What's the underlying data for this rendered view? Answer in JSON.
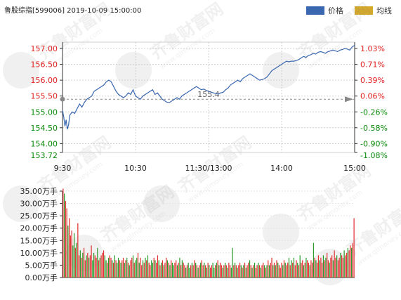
{
  "header": {
    "title": "鲁股综指[599006] 2019-10-09 15:00:00"
  },
  "legend": [
    {
      "label": "价格",
      "color": "#3a67b0"
    },
    {
      "label": "均线",
      "color": "#d5aa2c"
    }
  ],
  "watermark": {
    "text": "齐鲁财富网",
    "url": "www.qlmoney.com"
  },
  "colors": {
    "price_line": "#3a67b0",
    "up_text": "#e02020",
    "down_text": "#0a8a0a",
    "up_bar": "#e03030",
    "down_bar": "#2a9a2a",
    "grid": "#d0d0d0",
    "axis": "#333333",
    "marker": "#888888"
  },
  "chart_data": [
    {
      "type": "line",
      "title": "鲁股综指[599006] 2019-10-09 15:00:00",
      "y_left_ticks": [
        "157.00",
        "156.50",
        "156.00",
        "155.50",
        "155.00",
        "154.50",
        "154.00",
        "153.72"
      ],
      "y_left_tick_values": [
        157.0,
        156.5,
        156.0,
        155.5,
        155.0,
        154.5,
        154.0,
        153.72
      ],
      "y_right_ticks": [
        "1.03%",
        "0.71%",
        "0.39%",
        "0.06%",
        "-0.26%",
        "-0.58%",
        "-0.90%",
        "-1.08%"
      ],
      "y_right_tick_values": [
        157.0,
        156.5,
        156.0,
        155.5,
        155.0,
        154.5,
        154.0,
        153.72
      ],
      "x_tick_labels": [
        "9:30",
        "10:30",
        "11:30/13:00",
        "14:00",
        "15:00"
      ],
      "x_tick_positions": [
        0,
        60,
        120,
        180,
        240
      ],
      "ylim": [
        153.72,
        157.2
      ],
      "xlim": [
        0,
        240
      ],
      "reference_label": "155.4",
      "reference_value": 155.4,
      "series": [
        {
          "color": "#3a67b0",
          "x": [
            0,
            1,
            2,
            3,
            4,
            5,
            6,
            8,
            10,
            12,
            14,
            16,
            18,
            20,
            22,
            24,
            26,
            28,
            30,
            32,
            34,
            36,
            38,
            40,
            42,
            44,
            46,
            48,
            50,
            52,
            54,
            56,
            58,
            60,
            62,
            64,
            66,
            68,
            70,
            72,
            74,
            76,
            78,
            80,
            82,
            84,
            86,
            88,
            90,
            92,
            94,
            96,
            98,
            100,
            102,
            104,
            106,
            108,
            110,
            112,
            114,
            116,
            118,
            120,
            122,
            124,
            126,
            128,
            130,
            132,
            134,
            136,
            138,
            140,
            142,
            144,
            146,
            148,
            150,
            152,
            154,
            156,
            158,
            160,
            162,
            164,
            166,
            168,
            170,
            172,
            174,
            176,
            178,
            180,
            182,
            184,
            186,
            188,
            190,
            192,
            194,
            196,
            198,
            200,
            202,
            204,
            206,
            208,
            210,
            212,
            214,
            216,
            218,
            220,
            222,
            224,
            226,
            228,
            230,
            232,
            234,
            236,
            238,
            240
          ],
          "values": [
            155.05,
            154.85,
            154.55,
            154.75,
            154.45,
            154.6,
            154.9,
            155.0,
            154.95,
            155.1,
            155.25,
            155.15,
            155.3,
            155.4,
            155.45,
            155.5,
            155.65,
            155.7,
            155.75,
            155.8,
            155.85,
            155.95,
            156.0,
            155.95,
            155.8,
            155.65,
            155.55,
            155.5,
            155.45,
            155.5,
            155.6,
            155.55,
            155.7,
            155.5,
            155.45,
            155.4,
            155.5,
            155.55,
            155.6,
            155.65,
            155.7,
            155.55,
            155.6,
            155.5,
            155.4,
            155.35,
            155.3,
            155.3,
            155.35,
            155.4,
            155.45,
            155.4,
            155.5,
            155.55,
            155.6,
            155.65,
            155.7,
            155.75,
            155.8,
            155.75,
            155.7,
            155.72,
            155.68,
            155.65,
            155.62,
            155.6,
            155.58,
            155.56,
            155.6,
            155.62,
            155.7,
            155.75,
            155.85,
            155.9,
            155.95,
            156.0,
            155.95,
            156.05,
            156.1,
            156.15,
            156.2,
            156.15,
            156.1,
            156.05,
            156.0,
            156.02,
            156.05,
            156.1,
            156.2,
            156.3,
            156.35,
            156.4,
            156.45,
            156.5,
            156.55,
            156.6,
            156.58,
            156.6,
            156.6,
            156.62,
            156.65,
            156.7,
            156.75,
            156.72,
            156.78,
            156.8,
            156.85,
            156.82,
            156.88,
            156.9,
            156.88,
            156.85,
            156.9,
            156.92,
            156.95,
            156.93,
            156.9,
            156.95,
            156.97,
            157.0,
            156.98,
            156.95,
            157.05,
            157.1
          ]
        }
      ]
    },
    {
      "type": "bar",
      "ylabel_unit": "万手",
      "y_ticks": [
        "35.00万手",
        "30.00万手",
        "25.00万手",
        "20.00万手",
        "15.00万手",
        "10.00万手",
        "5.00万手",
        "0.00万手"
      ],
      "y_tick_values": [
        35,
        30,
        25,
        20,
        15,
        10,
        5,
        0
      ],
      "ylim": [
        0,
        35
      ],
      "xlim": [
        0,
        240
      ],
      "values": [
        36,
        34,
        31,
        28,
        21,
        24,
        17,
        19,
        13,
        18,
        12,
        14,
        22,
        9,
        11,
        8,
        10,
        12,
        7,
        9,
        10,
        8,
        9,
        13,
        7,
        10,
        9,
        8,
        12,
        7,
        8,
        9,
        10,
        11,
        9,
        7,
        6,
        8,
        9,
        8,
        7,
        6,
        9,
        7,
        6,
        8,
        7,
        6,
        7,
        8,
        6,
        7,
        8,
        6,
        5,
        7,
        8,
        9,
        6,
        7,
        8,
        10,
        6,
        8,
        5,
        7,
        6,
        8,
        7,
        9,
        6,
        5,
        7,
        6,
        8,
        7,
        6,
        9,
        7,
        5,
        6,
        7,
        5,
        6,
        8,
        7,
        6,
        5,
        7,
        6,
        5,
        6,
        7,
        5,
        6,
        8,
        5,
        7,
        6,
        5,
        4,
        5,
        6,
        4,
        5,
        6,
        5,
        7,
        6,
        5,
        4,
        5,
        6,
        7,
        5,
        6,
        5,
        4,
        6,
        5,
        4,
        5,
        6,
        4,
        5,
        6,
        7,
        5,
        6,
        5,
        4,
        5,
        6,
        5,
        4,
        6,
        5,
        4,
        12,
        5,
        6,
        5,
        4,
        5,
        6,
        5,
        4,
        5,
        6,
        4,
        5,
        6,
        7,
        5,
        4,
        5,
        6,
        4,
        5,
        6,
        5,
        4,
        5,
        6,
        5,
        4,
        5,
        7,
        5,
        6,
        8,
        5,
        6,
        5,
        7,
        6,
        5,
        4,
        6,
        5,
        7,
        6,
        5,
        6,
        8,
        5,
        7,
        6,
        8,
        5,
        7,
        6,
        5,
        9,
        6,
        7,
        5,
        6,
        8,
        7,
        6,
        5,
        7,
        6,
        14,
        8,
        7,
        6,
        9,
        7,
        8,
        6,
        9,
        7,
        8,
        10,
        7,
        6,
        8,
        9,
        7,
        11,
        8,
        9,
        7,
        8,
        10,
        9,
        8,
        11,
        9,
        10,
        12,
        11,
        13,
        12,
        14,
        24
      ],
      "up": [
        1,
        0,
        1,
        1,
        0,
        1,
        1,
        1,
        0,
        0,
        1,
        0,
        1,
        1,
        0,
        1,
        0,
        1,
        1,
        0,
        1,
        0,
        1,
        1,
        0,
        0,
        1,
        1,
        0,
        1,
        0,
        1,
        1,
        1,
        0,
        0,
        1,
        0,
        1,
        1,
        0,
        1,
        0,
        1,
        0,
        0,
        1,
        0,
        1,
        1,
        0,
        1,
        0,
        1,
        0,
        1,
        1,
        0,
        1,
        0,
        0,
        1,
        0,
        1,
        1,
        0,
        1,
        0,
        1,
        0,
        1,
        1,
        0,
        0,
        1,
        0,
        1,
        1,
        0,
        1,
        0,
        1,
        0,
        1,
        1,
        0,
        1,
        0,
        1,
        0,
        0,
        1,
        1,
        0,
        1,
        0,
        1,
        0,
        1,
        1,
        0,
        1,
        0,
        0,
        1,
        0,
        1,
        1,
        0,
        1,
        0,
        1,
        0,
        1,
        1,
        0,
        1,
        0,
        1,
        0,
        1,
        1,
        0,
        0,
        1,
        0,
        1,
        0,
        1,
        1,
        0,
        1,
        0,
        1,
        0,
        1,
        1,
        0,
        0,
        1,
        0,
        1,
        0,
        1,
        1,
        0,
        1,
        0,
        1,
        0,
        1,
        1,
        0,
        1,
        0,
        1,
        0,
        1,
        1,
        0,
        1,
        0,
        1,
        1,
        0,
        1,
        0,
        1,
        0,
        1,
        1,
        0,
        1,
        0,
        1,
        0,
        1,
        1,
        1,
        0,
        1,
        0,
        1,
        1,
        0,
        1,
        0,
        1,
        0,
        1,
        1,
        0,
        1,
        0,
        1,
        1,
        0,
        1,
        0,
        1,
        1,
        0,
        1,
        1,
        0,
        1,
        0,
        1,
        1,
        0,
        1,
        1,
        0,
        1,
        0,
        1,
        1,
        0,
        1,
        1,
        0,
        1,
        1,
        0,
        1,
        1,
        0,
        1,
        1,
        0,
        1,
        1,
        0,
        1,
        1,
        0,
        1,
        1,
        0,
        1,
        1,
        1,
        0,
        1,
        1,
        0,
        0
      ]
    }
  ]
}
